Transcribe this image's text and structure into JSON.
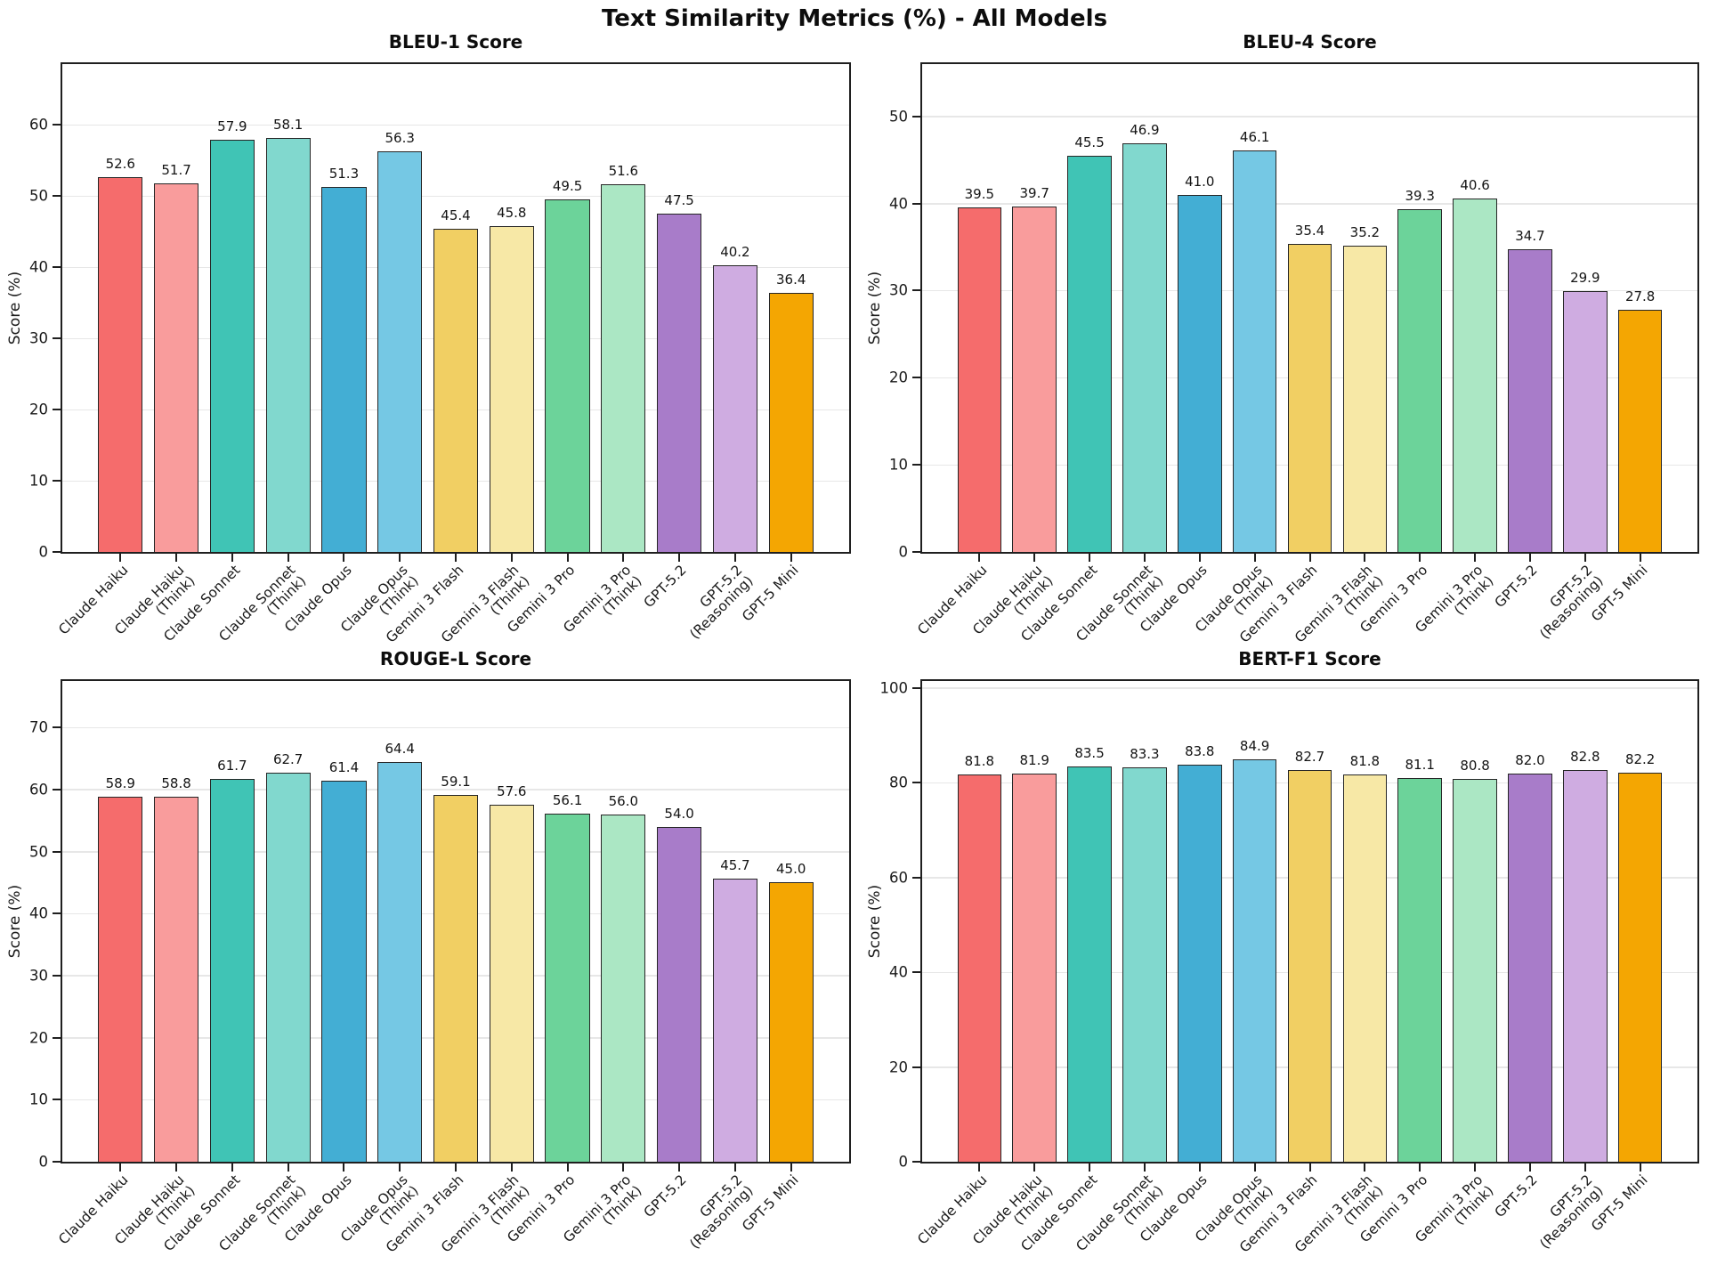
{
  "page_title": "Text Similarity Metrics (%) - All Models",
  "categories": [
    "Claude Haiku",
    "Claude Haiku\n(Think)",
    "Claude Sonnet",
    "Claude Sonnet\n(Think)",
    "Claude Opus",
    "Claude Opus\n(Think)",
    "Gemini 3 Flash",
    "Gemini 3 Flash\n(Think)",
    "Gemini 3 Pro",
    "Gemini 3 Pro\n(Think)",
    "GPT-5.2",
    "GPT-5.2\n(Reasoning)",
    "GPT-5 Mini"
  ],
  "bar_colors": [
    "#F56C6C",
    "#F99C9C",
    "#40C4B5",
    "#81D8CE",
    "#43AED4",
    "#75C8E4",
    "#F1CF63",
    "#F7E8A6",
    "#6CD39A",
    "#ABE7C4",
    "#A87CC9",
    "#CFACE1",
    "#F4A602"
  ],
  "bar_edge_color": "#262626",
  "grid_color": "#e7e7e7",
  "chart_data": [
    {
      "type": "bar",
      "title": "BLEU-1 Score",
      "ylabel": "Score (%)",
      "ylim": [
        0,
        68.5
      ],
      "yticks": [
        0,
        10,
        20,
        30,
        40,
        50,
        60
      ],
      "grid": true,
      "values": [
        52.6,
        51.7,
        57.9,
        58.1,
        51.3,
        56.3,
        45.4,
        45.8,
        49.5,
        51.6,
        47.5,
        40.2,
        36.4
      ]
    },
    {
      "type": "bar",
      "title": "BLEU-4 Score",
      "ylabel": "Score (%)",
      "ylim": [
        0,
        56
      ],
      "yticks": [
        0,
        10,
        20,
        30,
        40,
        50
      ],
      "grid": true,
      "values": [
        39.5,
        39.7,
        45.5,
        46.9,
        41.0,
        46.1,
        35.4,
        35.2,
        39.3,
        40.6,
        34.7,
        29.9,
        27.8
      ]
    },
    {
      "type": "bar",
      "title": "ROUGE-L Score",
      "ylabel": "Score (%)",
      "ylim": [
        0,
        77.5
      ],
      "yticks": [
        0,
        10,
        20,
        30,
        40,
        50,
        60,
        70
      ],
      "grid": true,
      "values": [
        58.9,
        58.8,
        61.7,
        62.7,
        61.4,
        64.4,
        59.1,
        57.6,
        56.1,
        56.0,
        54.0,
        45.7,
        45.0
      ]
    },
    {
      "type": "bar",
      "title": "BERT-F1 Score",
      "ylabel": "Score (%)",
      "ylim": [
        0,
        101.5
      ],
      "yticks": [
        0,
        20,
        40,
        60,
        80,
        100
      ],
      "grid": true,
      "values": [
        81.8,
        81.9,
        83.5,
        83.3,
        83.8,
        84.9,
        82.7,
        81.8,
        81.1,
        80.8,
        82.0,
        82.8,
        82.2
      ]
    }
  ]
}
